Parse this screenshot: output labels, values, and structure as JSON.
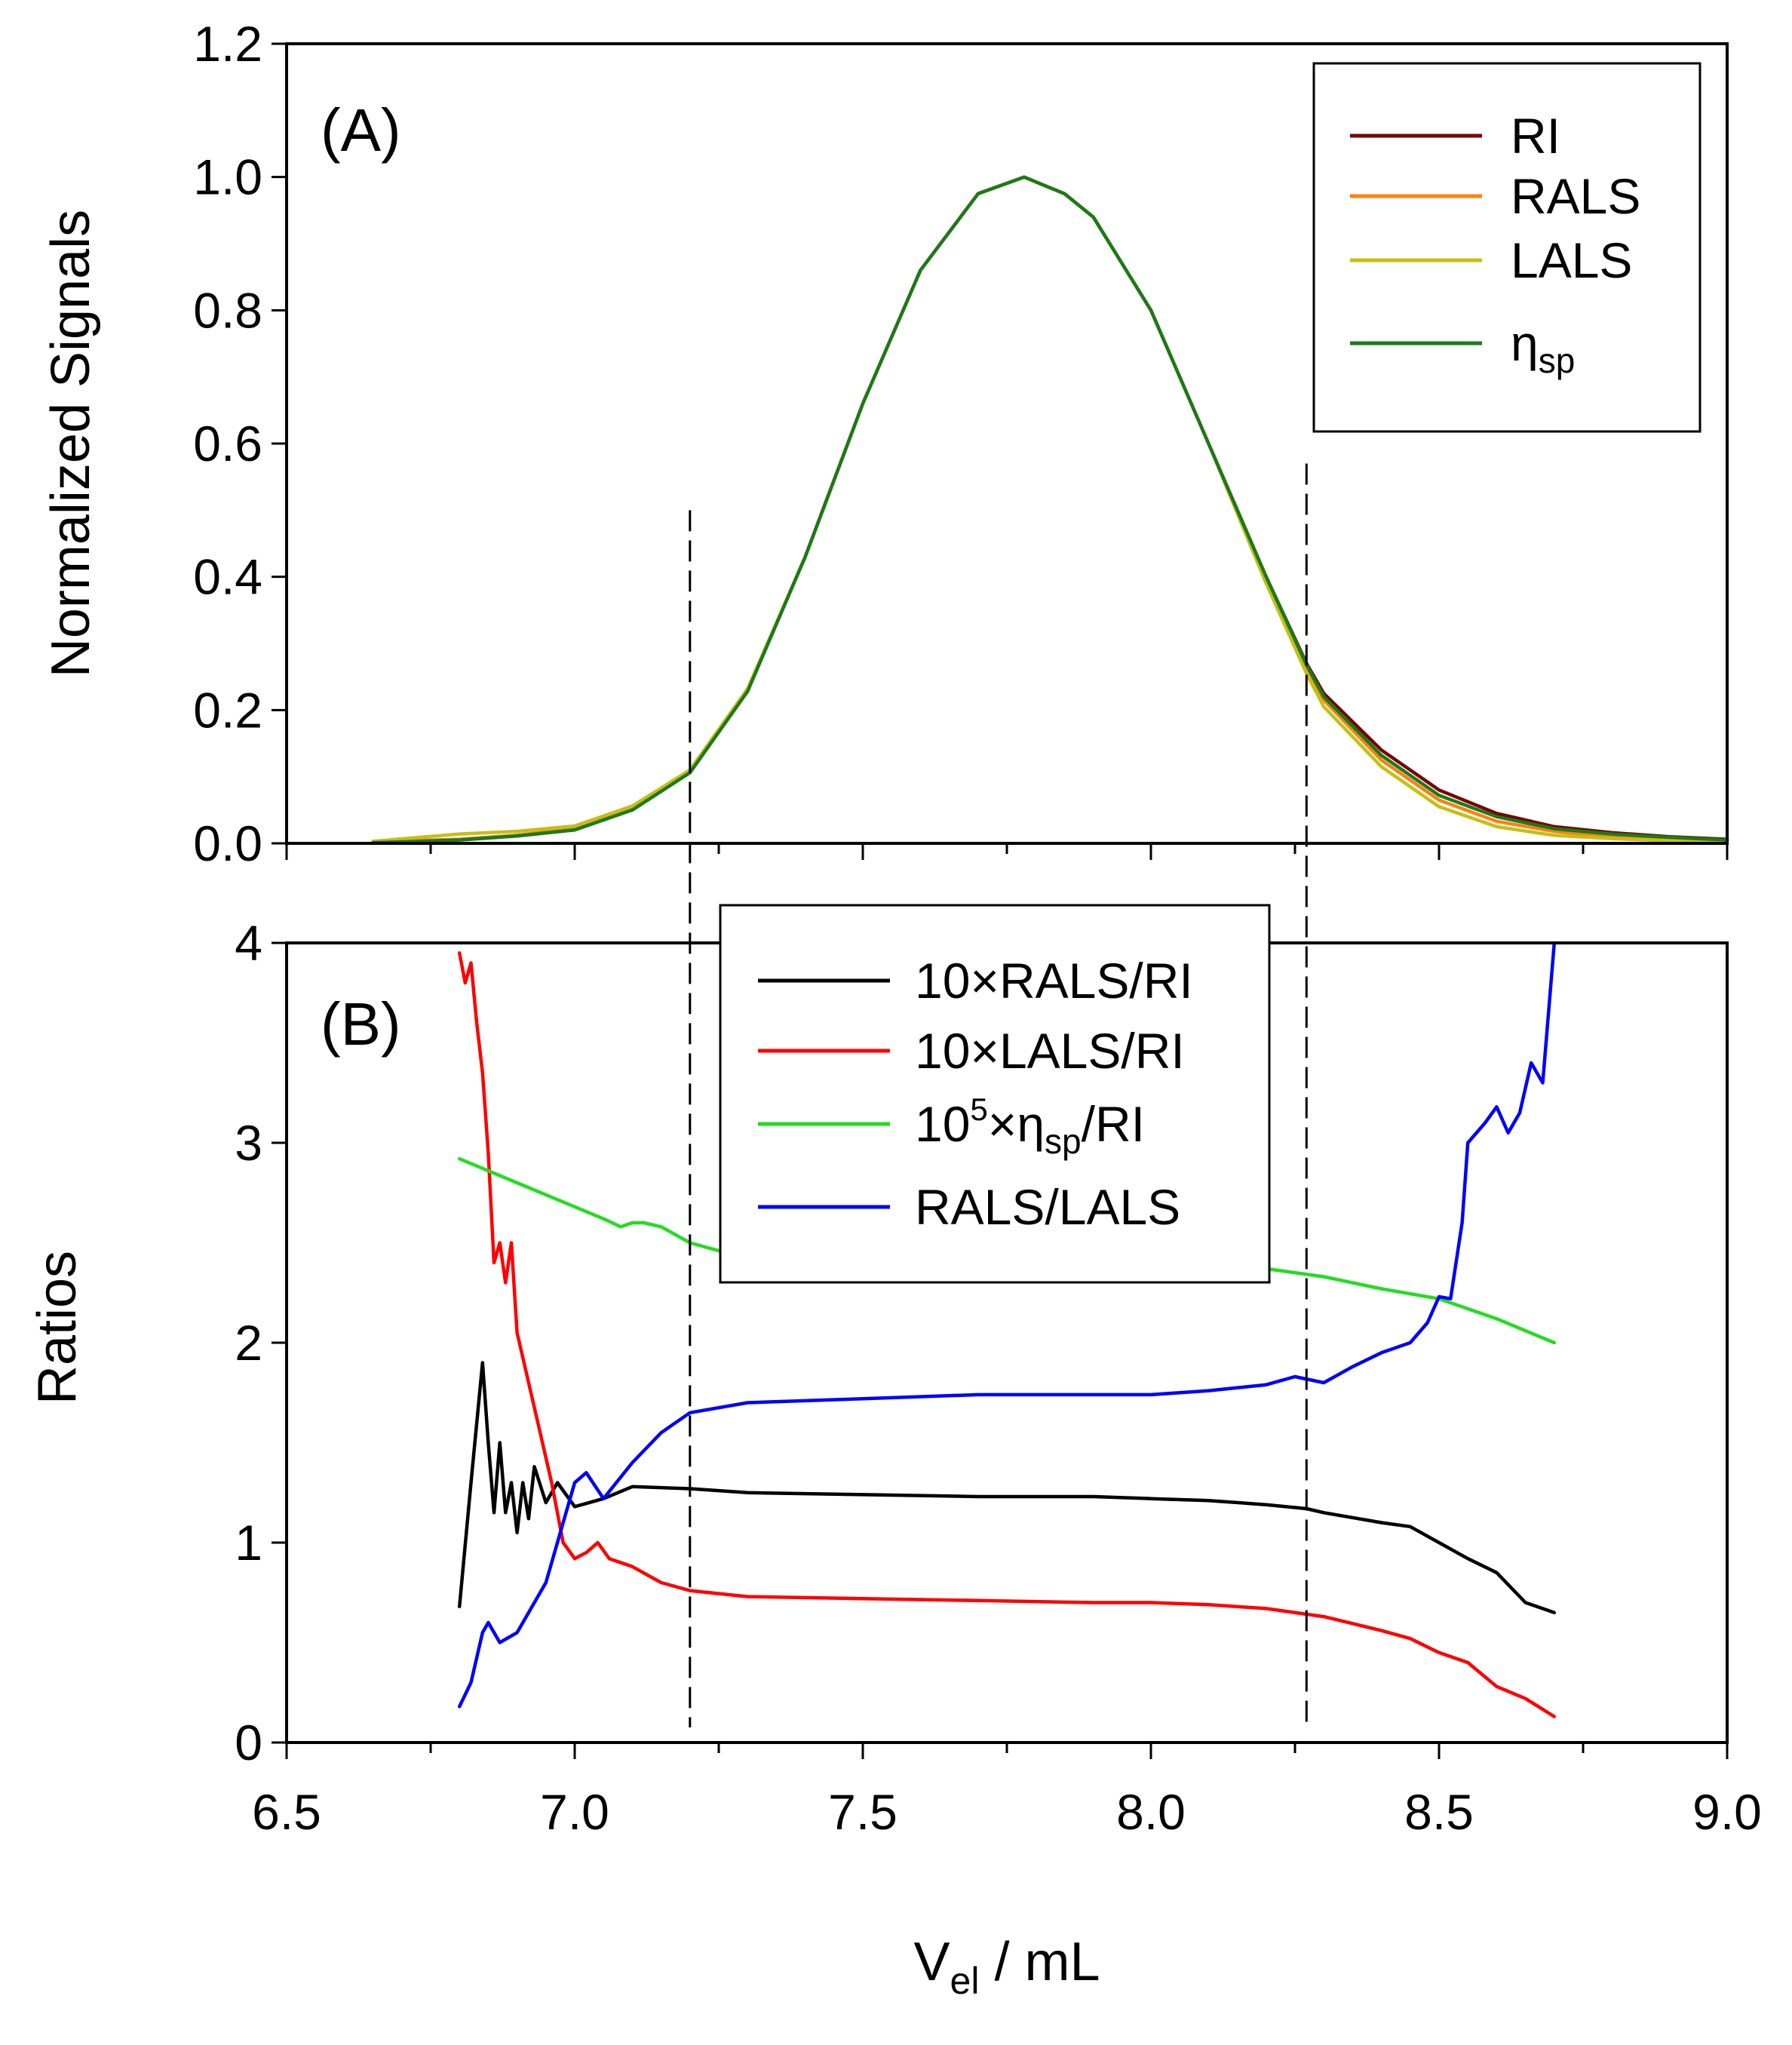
{
  "chart_data": [
    {
      "type": "line",
      "panel_label": "(A)",
      "ylabel": "Normalized Signals",
      "xlim": [
        6.5,
        9.0
      ],
      "ylim": [
        0.0,
        1.2
      ],
      "y_ticks": [
        "0.0",
        "0.2",
        "0.4",
        "0.6",
        "0.8",
        "1.0",
        "1.2"
      ],
      "legend_position": "top-right",
      "series": [
        {
          "name": "RI",
          "color": "#7b0000",
          "x": [
            6.65,
            6.8,
            6.9,
            7.0,
            7.1,
            7.2,
            7.3,
            7.4,
            7.5,
            7.6,
            7.7,
            7.78,
            7.85,
            7.9,
            8.0,
            8.1,
            8.2,
            8.27,
            8.3,
            8.4,
            8.5,
            8.6,
            8.7,
            8.8,
            8.9,
            9.0
          ],
          "y": [
            0.002,
            0.006,
            0.012,
            0.022,
            0.052,
            0.108,
            0.23,
            0.43,
            0.66,
            0.86,
            0.975,
            1.0,
            0.975,
            0.94,
            0.8,
            0.6,
            0.4,
            0.27,
            0.225,
            0.14,
            0.08,
            0.045,
            0.025,
            0.016,
            0.01,
            0.006
          ]
        },
        {
          "name": "RALS",
          "color": "#ff7f0e",
          "x": [
            6.65,
            6.8,
            6.9,
            7.0,
            7.1,
            7.2,
            7.3,
            7.4,
            7.5,
            7.6,
            7.7,
            7.78,
            7.85,
            7.9,
            8.0,
            8.1,
            8.2,
            8.27,
            8.3,
            8.4,
            8.5,
            8.6,
            8.7,
            8.8,
            8.9,
            9.0
          ],
          "y": [
            0.002,
            0.006,
            0.012,
            0.022,
            0.052,
            0.108,
            0.23,
            0.43,
            0.66,
            0.86,
            0.975,
            1.0,
            0.975,
            0.94,
            0.8,
            0.6,
            0.4,
            0.265,
            0.215,
            0.125,
            0.065,
            0.033,
            0.018,
            0.01,
            0.006,
            0.004
          ]
        },
        {
          "name": "LALS",
          "color": "#c8be14",
          "x": [
            6.65,
            6.8,
            6.9,
            7.0,
            7.1,
            7.2,
            7.3,
            7.4,
            7.5,
            7.6,
            7.7,
            7.78,
            7.85,
            7.9,
            8.0,
            8.1,
            8.2,
            8.27,
            8.3,
            8.4,
            8.5,
            8.6,
            8.7,
            8.8,
            8.9,
            9.0
          ],
          "y": [
            0.003,
            0.014,
            0.018,
            0.026,
            0.056,
            0.11,
            0.232,
            0.43,
            0.66,
            0.86,
            0.975,
            1.0,
            0.975,
            0.94,
            0.8,
            0.6,
            0.39,
            0.255,
            0.205,
            0.115,
            0.055,
            0.025,
            0.012,
            0.007,
            0.004,
            0.003
          ]
        },
        {
          "name": "ηsp",
          "color": "#1a7a1a",
          "x": [
            6.65,
            6.8,
            6.9,
            7.0,
            7.1,
            7.2,
            7.3,
            7.4,
            7.5,
            7.6,
            7.7,
            7.78,
            7.85,
            7.9,
            8.0,
            8.1,
            8.2,
            8.27,
            8.3,
            8.4,
            8.5,
            8.6,
            8.7,
            8.8,
            8.9,
            9.0
          ],
          "y": [
            0.001,
            0.005,
            0.011,
            0.02,
            0.05,
            0.106,
            0.228,
            0.43,
            0.66,
            0.86,
            0.975,
            1.0,
            0.975,
            0.94,
            0.8,
            0.6,
            0.4,
            0.268,
            0.22,
            0.132,
            0.072,
            0.04,
            0.022,
            0.014,
            0.009,
            0.005
          ]
        }
      ],
      "reference_lines": [
        {
          "x": 7.2,
          "y_top": 0.5
        },
        {
          "x": 8.27,
          "y_top": 0.57
        }
      ]
    },
    {
      "type": "line",
      "panel_label": "(B)",
      "ylabel": "Ratios",
      "xlabel_main": "V",
      "xlabel_sub": "el",
      "xlabel_rest": " / mL",
      "xlim": [
        6.5,
        9.0
      ],
      "ylim": [
        0,
        4
      ],
      "x_ticks": [
        "6.5",
        "7.0",
        "7.5",
        "8.0",
        "8.5",
        "9.0"
      ],
      "y_ticks": [
        "0",
        "1",
        "2",
        "3",
        "4"
      ],
      "legend_position": "top-center",
      "series": [
        {
          "name": "10×RALS/RI",
          "color": "#000000",
          "x": [
            6.8,
            6.82,
            6.84,
            6.85,
            6.86,
            6.87,
            6.88,
            6.89,
            6.9,
            6.91,
            6.92,
            6.93,
            6.95,
            6.97,
            7.0,
            7.05,
            7.1,
            7.2,
            7.3,
            7.5,
            7.7,
            7.9,
            8.0,
            8.1,
            8.2,
            8.27,
            8.3,
            8.4,
            8.45,
            8.5,
            8.55,
            8.6,
            8.65,
            8.7
          ],
          "y": [
            0.68,
            1.3,
            1.9,
            1.5,
            1.15,
            1.5,
            1.15,
            1.3,
            1.05,
            1.3,
            1.12,
            1.38,
            1.2,
            1.3,
            1.18,
            1.22,
            1.28,
            1.27,
            1.25,
            1.24,
            1.23,
            1.23,
            1.22,
            1.21,
            1.19,
            1.17,
            1.15,
            1.1,
            1.08,
            1.0,
            0.92,
            0.85,
            0.7,
            0.65
          ]
        },
        {
          "name": "10×LALS/RI",
          "color": "#ff0000",
          "x": [
            6.8,
            6.81,
            6.82,
            6.83,
            6.84,
            6.85,
            6.86,
            6.87,
            6.88,
            6.89,
            6.9,
            6.92,
            6.94,
            6.96,
            6.98,
            7.0,
            7.02,
            7.04,
            7.06,
            7.08,
            7.1,
            7.15,
            7.2,
            7.3,
            7.5,
            7.7,
            7.9,
            8.0,
            8.1,
            8.2,
            8.3,
            8.4,
            8.45,
            8.5,
            8.55,
            8.6,
            8.65,
            8.7
          ],
          "y": [
            3.95,
            3.8,
            3.9,
            3.6,
            3.35,
            2.95,
            2.4,
            2.5,
            2.3,
            2.5,
            2.05,
            1.8,
            1.55,
            1.3,
            1.0,
            0.92,
            0.95,
            1.0,
            0.92,
            0.9,
            0.88,
            0.8,
            0.76,
            0.73,
            0.72,
            0.71,
            0.7,
            0.7,
            0.69,
            0.67,
            0.63,
            0.56,
            0.52,
            0.45,
            0.4,
            0.28,
            0.22,
            0.13
          ]
        },
        {
          "name": "10⁵×ηsp/RI",
          "color": "#22dd22",
          "x": [
            6.8,
            6.9,
            7.0,
            7.05,
            7.08,
            7.1,
            7.12,
            7.15,
            7.2,
            7.25,
            7.3,
            8.2,
            8.3,
            8.4,
            8.5,
            8.6,
            8.7
          ],
          "y": [
            2.92,
            2.8,
            2.68,
            2.62,
            2.58,
            2.6,
            2.6,
            2.58,
            2.5,
            2.46,
            2.45,
            2.37,
            2.33,
            2.27,
            2.22,
            2.12,
            2.0
          ]
        },
        {
          "name": "RALS/LALS",
          "color": "#0000ff",
          "x": [
            6.8,
            6.82,
            6.84,
            6.85,
            6.87,
            6.9,
            6.95,
            6.98,
            7.0,
            7.02,
            7.05,
            7.1,
            7.15,
            7.2,
            7.3,
            7.5,
            7.7,
            7.9,
            8.0,
            8.1,
            8.2,
            8.25,
            8.3,
            8.35,
            8.4,
            8.45,
            8.48,
            8.5,
            8.52,
            8.54,
            8.55,
            8.58,
            8.6,
            8.62,
            8.64,
            8.66,
            8.68,
            8.7
          ],
          "y": [
            0.18,
            0.3,
            0.55,
            0.6,
            0.5,
            0.55,
            0.8,
            1.1,
            1.3,
            1.35,
            1.22,
            1.4,
            1.55,
            1.65,
            1.7,
            1.72,
            1.74,
            1.74,
            1.74,
            1.76,
            1.79,
            1.83,
            1.8,
            1.88,
            1.95,
            2.0,
            2.1,
            2.23,
            2.22,
            2.6,
            3.0,
            3.1,
            3.18,
            3.05,
            3.15,
            3.4,
            3.3,
            4.0
          ]
        }
      ],
      "reference_lines": [
        {
          "x": 7.2
        },
        {
          "x": 8.27
        }
      ]
    }
  ]
}
